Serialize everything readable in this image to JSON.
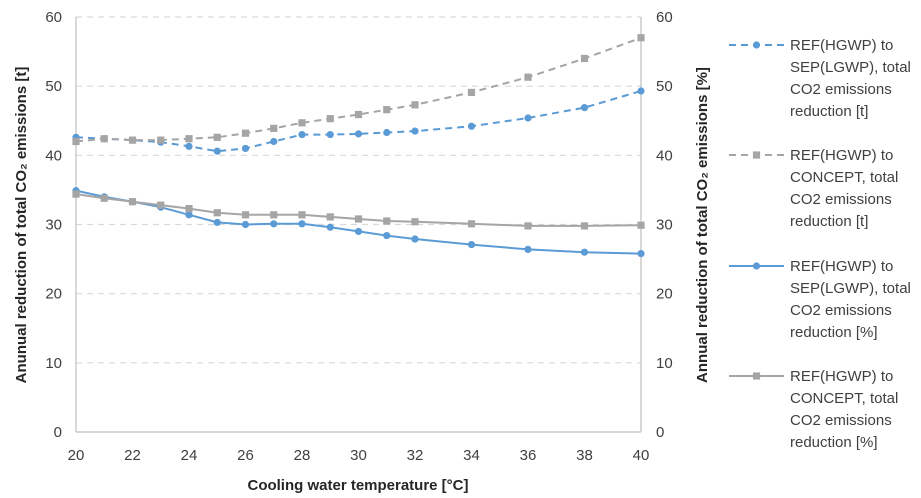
{
  "chart_data": {
    "type": "line",
    "title": "",
    "xlabel": "Cooling water temperature [°C]",
    "ylabel_left": "Anunual reduction of total CO₂ emissions [t]",
    "ylabel_right": "Annual reduction of total CO₂ emissions  [%]",
    "xlim": [
      20,
      40
    ],
    "ylim": [
      0,
      60
    ],
    "y2lim": [
      0,
      60
    ],
    "x_ticks": [
      20,
      22,
      24,
      26,
      28,
      30,
      32,
      34,
      36,
      38,
      40
    ],
    "y_ticks": [
      0,
      10,
      20,
      30,
      40,
      50,
      60
    ],
    "grid": "horizontal dashed",
    "legend_position": "right",
    "series": [
      {
        "name": "REF(HGWP) to SEP(LGWP), total CO2 emissions reduction [t]",
        "legend_lines": [
          "REF(HGWP) to",
          "SEP(LGWP), total",
          "CO2 emissions",
          "reduction [t]"
        ],
        "axis": "left",
        "color": "#5b9bd5",
        "style": "dashed",
        "marker": "circle",
        "x": [
          20,
          21,
          22,
          23,
          24,
          25,
          26,
          27,
          28,
          29,
          30,
          31,
          32,
          34,
          36,
          38,
          40
        ],
        "values": [
          42.6,
          42.4,
          42.2,
          41.9,
          41.3,
          40.6,
          41.0,
          42.0,
          43.0,
          43.0,
          43.1,
          43.3,
          43.5,
          44.2,
          45.4,
          46.9,
          49.3
        ]
      },
      {
        "name": "REF(HGWP) to CONCEPT, total CO2 emissions reduction [t]",
        "legend_lines": [
          "REF(HGWP) to",
          "CONCEPT, total",
          "CO2 emissions",
          "reduction [t]"
        ],
        "axis": "left",
        "color": "#a5a5a5",
        "style": "dashed",
        "marker": "square",
        "x": [
          20,
          21,
          22,
          23,
          24,
          25,
          26,
          27,
          28,
          29,
          30,
          31,
          32,
          34,
          36,
          38,
          40
        ],
        "values": [
          42.0,
          42.4,
          42.2,
          42.2,
          42.4,
          42.6,
          43.2,
          43.9,
          44.7,
          45.3,
          45.9,
          46.6,
          47.3,
          49.1,
          51.3,
          54.0,
          57.0
        ]
      },
      {
        "name": "REF(HGWP) to SEP(LGWP), total CO2 emissions reduction [%]",
        "legend_lines": [
          "REF(HGWP) to",
          "SEP(LGWP), total",
          "CO2 emissions",
          "reduction [%]"
        ],
        "axis": "right",
        "color": "#5b9bd5",
        "style": "solid",
        "marker": "circle",
        "x": [
          20,
          21,
          22,
          23,
          24,
          25,
          26,
          27,
          28,
          29,
          30,
          31,
          32,
          34,
          36,
          38,
          40
        ],
        "values": [
          34.9,
          34.0,
          33.3,
          32.5,
          31.4,
          30.3,
          30.0,
          30.1,
          30.1,
          29.6,
          29.0,
          28.4,
          27.9,
          27.1,
          26.4,
          26.0,
          25.8
        ]
      },
      {
        "name": "REF(HGWP) to CONCEPT, total CO2 emissions reduction [%]",
        "legend_lines": [
          "REF(HGWP) to",
          "CONCEPT, total",
          "CO2 emissions",
          "reduction [%]"
        ],
        "axis": "right",
        "color": "#a5a5a5",
        "style": "solid",
        "marker": "square",
        "x": [
          20,
          21,
          22,
          23,
          24,
          25,
          26,
          27,
          28,
          29,
          30,
          31,
          32,
          34,
          36,
          38,
          40
        ],
        "values": [
          34.4,
          33.8,
          33.3,
          32.8,
          32.3,
          31.7,
          31.4,
          31.4,
          31.4,
          31.1,
          30.8,
          30.5,
          30.4,
          30.1,
          29.8,
          29.8,
          29.9
        ]
      }
    ]
  }
}
